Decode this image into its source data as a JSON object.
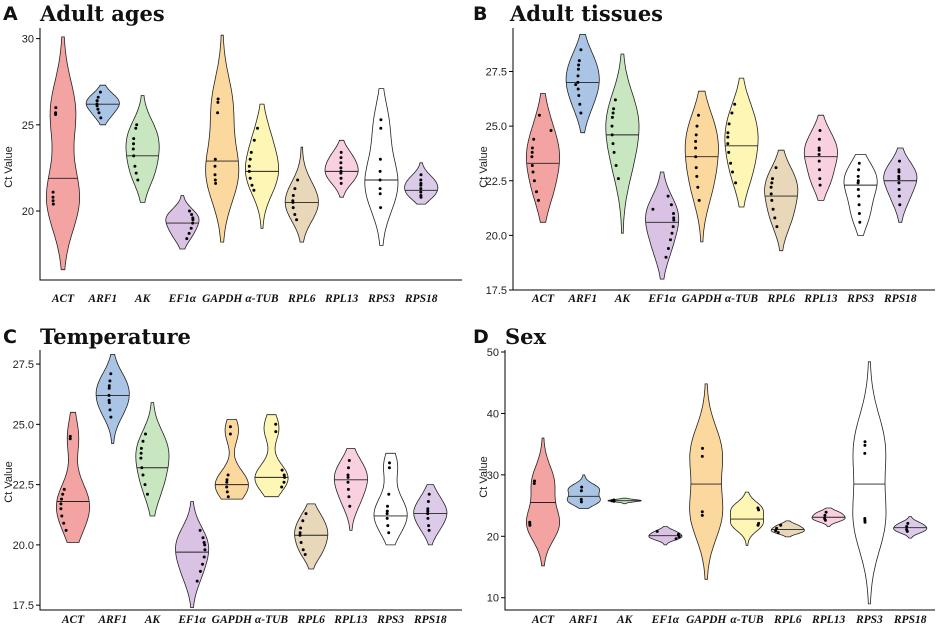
{
  "chart_data": [
    {
      "type": "violin",
      "panel": "A",
      "title": "Adult ages",
      "ylabel": "Ct Value",
      "ylim": [
        16,
        30.5
      ],
      "yticks": [
        20,
        25,
        30
      ],
      "categories": [
        "ACT",
        "ARF1",
        "AK",
        "EF1α",
        "GAPDH",
        "α-TUB",
        "RPL6",
        "RPL13",
        "RPS3",
        "RPS18"
      ],
      "series": [
        {
          "name": "ACT",
          "color": "#f4a3a3",
          "min": 16.6,
          "max": 30.1,
          "median": 21.9,
          "points": [
            26.0,
            25.7,
            25.6,
            21.1,
            20.8,
            20.6,
            20.4
          ]
        },
        {
          "name": "ARF1",
          "color": "#a9c4e4",
          "min": 25.0,
          "max": 27.3,
          "median": 26.2,
          "points": [
            26.9,
            26.6,
            26.4,
            26.2,
            26.1,
            25.9,
            25.7,
            25.4,
            26.4
          ]
        },
        {
          "name": "AK",
          "color": "#c8e6c0",
          "min": 20.5,
          "max": 26.7,
          "median": 23.2,
          "points": [
            25.0,
            24.8,
            24.2,
            23.6,
            23.2,
            22.6,
            22.2,
            21.8,
            23.9
          ]
        },
        {
          "name": "EF1α",
          "color": "#d9c2e3",
          "min": 17.8,
          "max": 20.9,
          "median": 19.3,
          "points": [
            20.0,
            19.8,
            19.6,
            19.3,
            19.0,
            18.7,
            18.4,
            19.5
          ]
        },
        {
          "name": "GAPDH",
          "color": "#fbd89e",
          "min": 18.2,
          "max": 30.2,
          "median": 22.9,
          "points": [
            26.5,
            26.3,
            25.7,
            23.0,
            22.6,
            22.1,
            21.8,
            21.6
          ]
        },
        {
          "name": "α-TUB",
          "color": "#fdf6b5",
          "min": 19.0,
          "max": 26.2,
          "median": 22.3,
          "points": [
            24.8,
            24.1,
            23.4,
            22.6,
            22.3,
            21.9,
            21.5,
            21.2,
            23.0
          ]
        },
        {
          "name": "RPL6",
          "color": "#e8d7b8",
          "min": 18.2,
          "max": 23.7,
          "median": 20.5,
          "points": [
            21.8,
            21.3,
            20.9,
            20.6,
            20.2,
            19.8,
            19.5,
            20.5
          ]
        },
        {
          "name": "RPL13",
          "color": "#f9d0e0",
          "min": 20.8,
          "max": 24.1,
          "median": 22.3,
          "points": [
            23.4,
            23.1,
            22.8,
            22.5,
            22.2,
            21.9,
            21.6,
            22.3
          ]
        },
        {
          "name": "RPS3",
          "color": "#ffffff",
          "min": 18.0,
          "max": 27.1,
          "median": 21.8,
          "points": [
            25.3,
            24.8,
            23.0,
            22.3,
            21.8,
            21.3,
            21.0,
            20.2
          ]
        },
        {
          "name": "RPS18",
          "color": "#dccbe8",
          "min": 20.4,
          "max": 22.8,
          "median": 21.2,
          "points": [
            22.1,
            21.8,
            21.5,
            21.3,
            21.1,
            20.9,
            20.8,
            21.6
          ]
        }
      ]
    },
    {
      "type": "violin",
      "panel": "B",
      "title": "Adult tissues",
      "ylabel": "Ct Value",
      "ylim": [
        17.5,
        29.4
      ],
      "yticks": [
        17.5,
        20.0,
        22.5,
        25.0,
        27.5
      ],
      "yticklabels": [
        "17.5",
        "20.0",
        "22.5",
        "25.0",
        "27.5"
      ],
      "categories": [
        "ACT",
        "ARF1",
        "AK",
        "EF1α",
        "GAPDH",
        "α-TUB",
        "RPL6",
        "RPL13",
        "RPS3",
        "RPS18"
      ],
      "series": [
        {
          "name": "ACT",
          "color": "#f4a3a3",
          "min": 20.6,
          "max": 26.5,
          "median": 23.3,
          "points": [
            25.5,
            24.4,
            24.0,
            23.6,
            23.2,
            22.9,
            22.5,
            22.0,
            21.6,
            23.8,
            24.8
          ]
        },
        {
          "name": "ARF1",
          "color": "#a9c4e4",
          "min": 24.7,
          "max": 29.2,
          "median": 27.0,
          "points": [
            28.5,
            28.0,
            27.6,
            27.3,
            27.0,
            26.7,
            26.4,
            26.0,
            25.6,
            27.8,
            26.9
          ]
        },
        {
          "name": "AK",
          "color": "#c8e6c0",
          "min": 20.1,
          "max": 28.3,
          "median": 24.6,
          "points": [
            26.2,
            25.8,
            25.4,
            25.0,
            24.6,
            24.2,
            23.8,
            23.2,
            22.6,
            25.6
          ]
        },
        {
          "name": "EF1α",
          "color": "#d9c2e3",
          "min": 18.0,
          "max": 22.9,
          "median": 20.6,
          "points": [
            21.8,
            21.4,
            21.0,
            20.7,
            20.4,
            20.1,
            19.8,
            19.4,
            19.0,
            20.8,
            21.2
          ]
        },
        {
          "name": "GAPDH",
          "color": "#fbd89e",
          "min": 19.7,
          "max": 26.6,
          "median": 23.6,
          "points": [
            25.5,
            25.0,
            24.6,
            24.0,
            23.6,
            23.1,
            22.7,
            22.2,
            21.6,
            24.3
          ]
        },
        {
          "name": "α-TUB",
          "color": "#fdf6b5",
          "min": 21.3,
          "max": 27.2,
          "median": 24.1,
          "points": [
            26.0,
            25.6,
            25.1,
            24.7,
            24.2,
            23.8,
            23.3,
            22.9,
            22.4,
            24.5
          ]
        },
        {
          "name": "RPL6",
          "color": "#e8d7b8",
          "min": 19.3,
          "max": 23.9,
          "median": 21.8,
          "points": [
            23.1,
            22.6,
            22.2,
            21.9,
            21.6,
            21.2,
            20.8,
            20.4,
            22.4
          ]
        },
        {
          "name": "RPL13",
          "color": "#f9d0e0",
          "min": 21.6,
          "max": 25.5,
          "median": 23.6,
          "points": [
            24.8,
            24.4,
            24.0,
            23.7,
            23.4,
            23.0,
            22.6,
            22.3,
            23.9
          ]
        },
        {
          "name": "RPS3",
          "color": "#ffffff",
          "min": 20.0,
          "max": 23.7,
          "median": 22.3,
          "points": [
            23.3,
            23.0,
            22.7,
            22.4,
            22.1,
            21.8,
            21.4,
            21.0,
            20.6,
            22.5
          ]
        },
        {
          "name": "RPS18",
          "color": "#dccbe8",
          "min": 20.6,
          "max": 24.0,
          "median": 22.5,
          "points": [
            23.4,
            23.0,
            22.7,
            22.4,
            22.1,
            21.8,
            21.4,
            22.6,
            22.9
          ]
        }
      ]
    },
    {
      "type": "violin",
      "panel": "C",
      "title": "Temperature",
      "ylabel": "Ct Value",
      "ylim": [
        17.3,
        28.0
      ],
      "yticks": [
        17.5,
        20.0,
        22.5,
        25.0,
        27.5
      ],
      "yticklabels": [
        "17.5",
        "20.0",
        "22.5",
        "25.0",
        "27.5"
      ],
      "categories": [
        "ACT",
        "ARF1",
        "AK",
        "EF1α",
        "GAPDH",
        "α-TUB",
        "RPL6",
        "RPL13",
        "RPS3",
        "RPS18"
      ],
      "series": [
        {
          "name": "ACT",
          "color": "#f4a3a3",
          "min": 20.1,
          "max": 25.5,
          "median": 21.8,
          "points": [
            24.5,
            24.4,
            22.1,
            21.9,
            21.7,
            21.5,
            21.2,
            20.9,
            20.6,
            22.3
          ]
        },
        {
          "name": "ARF1",
          "color": "#a9c4e4",
          "min": 24.2,
          "max": 27.9,
          "median": 26.2,
          "points": [
            27.1,
            26.8,
            26.5,
            26.2,
            25.9,
            25.6,
            25.3,
            26.6,
            26.0
          ]
        },
        {
          "name": "AK",
          "color": "#c8e6c0",
          "min": 21.2,
          "max": 25.9,
          "median": 23.2,
          "points": [
            24.6,
            24.3,
            24.0,
            23.6,
            23.2,
            22.9,
            22.5,
            22.1,
            23.8
          ]
        },
        {
          "name": "EF1α",
          "color": "#d9c2e3",
          "min": 17.4,
          "max": 21.8,
          "median": 19.7,
          "points": [
            20.6,
            20.3,
            20.0,
            19.8,
            19.5,
            19.2,
            18.9,
            18.5,
            20.1
          ]
        },
        {
          "name": "GAPDH",
          "color": "#fbd89e",
          "min": 21.9,
          "max": 25.2,
          "median": 22.5,
          "points": [
            24.9,
            24.6,
            22.9,
            22.6,
            22.4,
            22.2,
            22.0,
            22.7
          ]
        },
        {
          "name": "α-TUB",
          "color": "#fdf6b5",
          "min": 22.0,
          "max": 25.4,
          "median": 22.8,
          "points": [
            25.0,
            24.7,
            23.1,
            22.8,
            22.6,
            22.4,
            22.9
          ]
        },
        {
          "name": "RPL6",
          "color": "#e8d7b8",
          "min": 19.0,
          "max": 21.7,
          "median": 20.4,
          "points": [
            21.3,
            21.0,
            20.7,
            20.4,
            20.1,
            19.8,
            19.6,
            20.5
          ]
        },
        {
          "name": "RPL13",
          "color": "#f9d0e0",
          "min": 20.6,
          "max": 24.0,
          "median": 22.7,
          "points": [
            23.5,
            23.2,
            22.9,
            22.6,
            22.3,
            22.0,
            21.6,
            22.8
          ]
        },
        {
          "name": "RPS3",
          "color": "#ffffff",
          "min": 20.0,
          "max": 23.8,
          "median": 21.2,
          "points": [
            23.4,
            23.2,
            22.1,
            21.6,
            21.3,
            21.1,
            20.8,
            20.5,
            21.4
          ]
        },
        {
          "name": "RPS18",
          "color": "#dccbe8",
          "min": 20.0,
          "max": 22.5,
          "median": 21.3,
          "points": [
            22.1,
            21.8,
            21.5,
            21.3,
            21.1,
            20.8,
            20.6,
            21.4
          ]
        }
      ]
    },
    {
      "type": "violin",
      "panel": "D",
      "title": "Sex",
      "ylabel": "Ct Value",
      "ylim": [
        8,
        50
      ],
      "yticks": [
        10,
        20,
        30,
        40,
        50
      ],
      "categories": [
        "ACT",
        "ARF1",
        "AK",
        "EF1α",
        "GAPDH",
        "α-TUB",
        "RPL6",
        "RPL13",
        "RPS3",
        "RPS18"
      ],
      "series": [
        {
          "name": "ACT",
          "color": "#f4a3a3",
          "min": 15.2,
          "max": 36.0,
          "median": 25.5,
          "points": [
            29.0,
            28.6,
            22.3,
            22.0,
            21.8
          ]
        },
        {
          "name": "ARF1",
          "color": "#a9c4e4",
          "min": 24.5,
          "max": 30.0,
          "median": 26.5,
          "points": [
            28.0,
            27.4,
            26.0,
            25.6
          ]
        },
        {
          "name": "AK",
          "color": "#c8e6c0",
          "min": 25.3,
          "max": 26.2,
          "median": 25.8,
          "points": [
            25.9,
            25.8,
            25.7,
            25.8
          ]
        },
        {
          "name": "EF1α",
          "color": "#d9c2e3",
          "min": 18.6,
          "max": 21.6,
          "median": 20.1,
          "points": [
            20.8,
            20.3,
            19.9,
            19.6
          ]
        },
        {
          "name": "GAPDH",
          "color": "#fbd89e",
          "min": 13.0,
          "max": 44.8,
          "median": 28.5,
          "points": [
            34.3,
            33.0,
            24.0,
            23.4
          ]
        },
        {
          "name": "α-TUB",
          "color": "#fdf6b5",
          "min": 18.5,
          "max": 27.2,
          "median": 22.8,
          "points": [
            24.6,
            24.3,
            22.1,
            21.8
          ]
        },
        {
          "name": "RPL6",
          "color": "#e8d7b8",
          "min": 19.9,
          "max": 22.5,
          "median": 21.1,
          "points": [
            21.8,
            21.3,
            20.9,
            20.6
          ]
        },
        {
          "name": "RPL13",
          "color": "#f9d0e0",
          "min": 21.6,
          "max": 24.6,
          "median": 23.1,
          "points": [
            23.9,
            23.4,
            22.9,
            22.6
          ]
        },
        {
          "name": "RPS3",
          "color": "#ffffff",
          "min": 9.0,
          "max": 48.4,
          "median": 28.5,
          "points": [
            35.4,
            34.8,
            33.5,
            22.9,
            22.6,
            22.3
          ]
        },
        {
          "name": "RPS18",
          "color": "#dccbe8",
          "min": 19.7,
          "max": 23.2,
          "median": 21.4,
          "points": [
            22.1,
            21.6,
            21.1,
            20.8
          ]
        }
      ]
    }
  ]
}
